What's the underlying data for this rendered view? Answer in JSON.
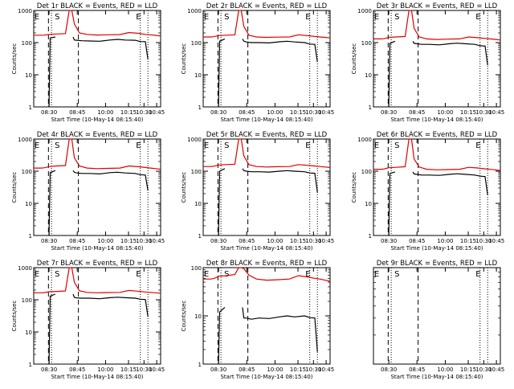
{
  "page": {
    "background": "#ffffff"
  },
  "colors": {
    "events": "#000000",
    "lld": "#e00000",
    "axes": "#000000"
  },
  "chart_data": [
    {
      "type": "line",
      "detector": "1r",
      "title": "Det 1r BLACK = Events, RED = LLD",
      "xlabel": "Start Time (10-May-14 08:15:40)",
      "ylabel": "Counts/sec",
      "x_tick_labels": [
        "08:30",
        "08:45",
        "10:00",
        "10:15",
        "10:30",
        "10:45"
      ],
      "y_tick_labels": [
        "1",
        "10",
        "100",
        "1000"
      ],
      "y_scale": "log",
      "ylim": [
        1,
        1000
      ],
      "xlim": [
        0,
        100
      ],
      "markers": [
        "E",
        "S",
        "E"
      ],
      "series": [
        {
          "color": "#e00000",
          "x": [
            0,
            6,
            8,
            10,
            12,
            18,
            25,
            28,
            30,
            32,
            36,
            42,
            50,
            58,
            68,
            75,
            82,
            88,
            92,
            96,
            100
          ],
          "y": [
            170,
            170,
            171,
            174,
            180,
            185,
            190,
            1500,
            1500,
            380,
            200,
            180,
            172,
            175,
            178,
            205,
            195,
            180,
            175,
            168,
            160
          ]
        },
        {
          "color": "#000000",
          "x": [
            0,
            12,
            13,
            17,
            18,
            30,
            31,
            32,
            34,
            38,
            44,
            52,
            60,
            66,
            72,
            80,
            84,
            88,
            90,
            91,
            100
          ],
          "y": [
            null,
            1,
            140,
            150,
            null,
            null,
            150,
            120,
            118,
            114,
            112,
            110,
            120,
            126,
            120,
            118,
            108,
            107,
            30,
            null,
            null
          ]
        }
      ]
    },
    {
      "type": "line",
      "detector": "2r",
      "title": "Det 2r BLACK = Events, RED = LLD",
      "xlabel": "Start Time (10-May-14 08:15:40)",
      "ylabel": "Counts/sec",
      "x_tick_labels": [
        "08:30",
        "08:45",
        "10:00",
        "10:15",
        "10:30",
        "10:45"
      ],
      "y_tick_labels": [
        "1",
        "10",
        "100",
        "1000"
      ],
      "y_scale": "log",
      "ylim": [
        1,
        1000
      ],
      "xlim": [
        0,
        100
      ],
      "markers": [
        "E",
        "S",
        "E"
      ],
      "series": [
        {
          "color": "#e00000",
          "x": [
            0,
            6,
            8,
            10,
            12,
            18,
            25,
            28,
            30,
            32,
            36,
            42,
            50,
            58,
            68,
            75,
            82,
            88,
            92,
            96,
            100
          ],
          "y": [
            150,
            150,
            152,
            158,
            165,
            170,
            175,
            1500,
            1500,
            320,
            170,
            150,
            145,
            148,
            150,
            175,
            165,
            155,
            150,
            145,
            140
          ]
        },
        {
          "color": "#000000",
          "x": [
            0,
            12,
            13,
            17,
            18,
            30,
            31,
            32,
            34,
            38,
            44,
            52,
            60,
            66,
            72,
            80,
            84,
            88,
            90,
            91,
            100
          ],
          "y": [
            null,
            1,
            110,
            130,
            null,
            null,
            130,
            110,
            105,
            100,
            100,
            98,
            106,
            110,
            105,
            100,
            90,
            88,
            25,
            null,
            null
          ]
        }
      ]
    },
    {
      "type": "line",
      "detector": "3r",
      "title": "Det 3r BLACK = Events, RED = LLD",
      "xlabel": "Start Time (10-May-14 08:15:40)",
      "ylabel": "Counts/sec",
      "x_tick_labels": [
        "08:30",
        "08:45",
        "10:00",
        "10:15",
        "10:30",
        "10:45"
      ],
      "y_tick_labels": [
        "1",
        "10",
        "100",
        "1000"
      ],
      "y_scale": "log",
      "ylim": [
        1,
        1000
      ],
      "xlim": [
        0,
        100
      ],
      "markers": [
        "E",
        "S",
        "E"
      ],
      "series": [
        {
          "color": "#e00000",
          "x": [
            0,
            6,
            8,
            10,
            12,
            18,
            25,
            28,
            30,
            32,
            36,
            42,
            50,
            58,
            68,
            75,
            82,
            88,
            92,
            96,
            100
          ],
          "y": [
            130,
            130,
            132,
            138,
            145,
            150,
            155,
            1500,
            1500,
            280,
            150,
            130,
            125,
            128,
            130,
            150,
            142,
            135,
            130,
            126,
            120
          ]
        },
        {
          "color": "#000000",
          "x": [
            0,
            12,
            13,
            17,
            18,
            30,
            31,
            32,
            34,
            38,
            44,
            52,
            60,
            66,
            72,
            80,
            84,
            88,
            90,
            91,
            100
          ],
          "y": [
            null,
            1,
            95,
            110,
            null,
            null,
            110,
            95,
            92,
            88,
            88,
            85,
            92,
            96,
            92,
            88,
            80,
            78,
            20,
            null,
            null
          ]
        }
      ]
    },
    {
      "type": "line",
      "detector": "4r",
      "title": "Det 4r BLACK = Events, RED = LLD",
      "xlabel": "Start Time (10-May-14 08:15:40)",
      "ylabel": "Counts/sec",
      "x_tick_labels": [
        "08:30",
        "08:45",
        "10:00",
        "10:15",
        "10:30",
        "10:45"
      ],
      "y_tick_labels": [
        "1",
        "10",
        "100",
        "1000"
      ],
      "y_scale": "log",
      "ylim": [
        1,
        1000
      ],
      "xlim": [
        0,
        100
      ],
      "markers": [
        "E",
        "S",
        "E"
      ],
      "series": [
        {
          "color": "#e00000",
          "x": [
            0,
            6,
            8,
            10,
            12,
            18,
            25,
            28,
            30,
            32,
            36,
            42,
            50,
            58,
            68,
            75,
            82,
            88,
            92,
            96,
            100
          ],
          "y": [
            125,
            125,
            127,
            132,
            140,
            145,
            150,
            1500,
            1500,
            260,
            145,
            125,
            120,
            122,
            125,
            145,
            138,
            130,
            125,
            120,
            115
          ]
        },
        {
          "color": "#000000",
          "x": [
            0,
            12,
            13,
            17,
            18,
            30,
            31,
            32,
            34,
            38,
            44,
            52,
            60,
            66,
            72,
            80,
            84,
            88,
            90,
            91,
            100
          ],
          "y": [
            null,
            1,
            90,
            105,
            null,
            null,
            105,
            92,
            88,
            85,
            85,
            82,
            90,
            93,
            88,
            85,
            78,
            76,
            25,
            null,
            null
          ]
        }
      ]
    },
    {
      "type": "line",
      "detector": "5r",
      "title": "Det 5r BLACK = Events, RED = LLD",
      "xlabel": "Start Time (10-May-14 08:15:40)",
      "ylabel": "Counts/sec",
      "x_tick_labels": [
        "08:30",
        "08:45",
        "10:00",
        "10:15",
        "10:30",
        "10:45"
      ],
      "y_tick_labels": [
        "1",
        "10",
        "100",
        "1000"
      ],
      "y_scale": "log",
      "ylim": [
        1,
        1000
      ],
      "xlim": [
        0,
        100
      ],
      "markers": [
        "E",
        "S",
        "E"
      ],
      "series": [
        {
          "color": "#e00000",
          "x": [
            0,
            6,
            8,
            10,
            12,
            18,
            25,
            28,
            30,
            32,
            36,
            42,
            50,
            58,
            68,
            75,
            82,
            88,
            92,
            96,
            100
          ],
          "y": [
            140,
            140,
            142,
            148,
            155,
            160,
            165,
            1500,
            1500,
            300,
            160,
            140,
            135,
            138,
            140,
            160,
            152,
            145,
            140,
            135,
            130
          ]
        },
        {
          "color": "#000000",
          "x": [
            0,
            12,
            13,
            17,
            18,
            30,
            31,
            32,
            34,
            38,
            44,
            52,
            60,
            66,
            72,
            80,
            84,
            88,
            90,
            91,
            100
          ],
          "y": [
            null,
            1,
            100,
            120,
            null,
            null,
            120,
            105,
            100,
            96,
            96,
            94,
            100,
            104,
            100,
            96,
            88,
            86,
            22,
            null,
            null
          ]
        }
      ]
    },
    {
      "type": "line",
      "detector": "6r",
      "title": "Det 6r BLACK = Events, RED = LLD",
      "xlabel": "Start Time (10-May-14 08:15:40)",
      "ylabel": "Counts/sec",
      "x_tick_labels": [
        "08:30",
        "08:45",
        "10:00",
        "10:15",
        "10:30",
        "10:45"
      ],
      "y_tick_labels": [
        "1",
        "10",
        "100",
        "1000"
      ],
      "y_scale": "log",
      "ylim": [
        1,
        1000
      ],
      "xlim": [
        0,
        100
      ],
      "markers": [
        "E",
        "S",
        "E"
      ],
      "series": [
        {
          "color": "#e00000",
          "x": [
            0,
            6,
            8,
            10,
            12,
            18,
            25,
            28,
            30,
            32,
            36,
            42,
            50,
            58,
            68,
            75,
            82,
            88,
            92,
            96,
            100
          ],
          "y": [
            115,
            115,
            117,
            122,
            128,
            132,
            138,
            1500,
            1500,
            240,
            135,
            115,
            110,
            112,
            115,
            132,
            126,
            118,
            114,
            110,
            105
          ]
        },
        {
          "color": "#000000",
          "x": [
            0,
            12,
            13,
            17,
            18,
            30,
            31,
            32,
            34,
            38,
            44,
            52,
            60,
            66,
            72,
            80,
            84,
            88,
            90,
            91,
            100
          ],
          "y": [
            null,
            1,
            85,
            95,
            null,
            null,
            95,
            82,
            80,
            76,
            76,
            74,
            80,
            83,
            80,
            76,
            70,
            68,
            18,
            null,
            null
          ]
        }
      ]
    },
    {
      "type": "line",
      "detector": "7r",
      "title": "Det 7r BLACK = Events, RED = LLD",
      "xlabel": "Start Time (10-May-14 08:15:40)",
      "ylabel": "Counts/sec",
      "x_tick_labels": [
        "08:30",
        "08:45",
        "10:00",
        "10:15",
        "10:30",
        "10:45"
      ],
      "y_tick_labels": [
        "1",
        "10",
        "100",
        "1000"
      ],
      "y_scale": "log",
      "ylim": [
        1,
        1000
      ],
      "xlim": [
        0,
        100
      ],
      "markers": [
        "E",
        "S",
        "E"
      ],
      "series": [
        {
          "color": "#e00000",
          "x": [
            0,
            6,
            8,
            10,
            12,
            18,
            25,
            28,
            30,
            32,
            36,
            42,
            50,
            58,
            68,
            75,
            82,
            88,
            92,
            96,
            100
          ],
          "y": [
            165,
            165,
            167,
            172,
            178,
            182,
            188,
            1500,
            1500,
            350,
            190,
            170,
            165,
            168,
            170,
            195,
            185,
            175,
            170,
            165,
            160
          ]
        },
        {
          "color": "#000000",
          "x": [
            0,
            12,
            13,
            17,
            18,
            30,
            31,
            32,
            34,
            38,
            44,
            52,
            60,
            66,
            72,
            80,
            84,
            88,
            90,
            91,
            100
          ],
          "y": [
            null,
            1,
            130,
            150,
            null,
            null,
            150,
            118,
            115,
            112,
            112,
            108,
            116,
            120,
            116,
            112,
            104,
            102,
            30,
            null,
            null
          ]
        }
      ]
    },
    {
      "type": "line",
      "detector": "8r",
      "title": "Det 8r BLACK = Events, RED = LLD",
      "xlabel": "Start Time (10-May-14 08:15:40)",
      "ylabel": "Counts/sec",
      "x_tick_labels": [
        "08:30",
        "08:45",
        "10:00",
        "10:15",
        "10:30",
        "10:45"
      ],
      "y_tick_labels": [
        "1",
        "10",
        "100"
      ],
      "y_scale": "log",
      "ylim": [
        1,
        100
      ],
      "xlim": [
        0,
        100
      ],
      "markers": [
        "E",
        "S",
        "E"
      ],
      "series": [
        {
          "color": "#e00000",
          "x": [
            0,
            6,
            8,
            10,
            12,
            18,
            25,
            28,
            30,
            32,
            36,
            42,
            50,
            58,
            68,
            75,
            82,
            88,
            92,
            96,
            100
          ],
          "y": [
            58,
            58,
            59,
            62,
            66,
            68,
            72,
            250,
            250,
            95,
            70,
            58,
            55,
            56,
            58,
            68,
            64,
            60,
            58,
            55,
            52
          ]
        },
        {
          "color": "#000000",
          "x": [
            0,
            12,
            13,
            17,
            18,
            30,
            31,
            32,
            34,
            38,
            44,
            52,
            60,
            66,
            72,
            80,
            84,
            88,
            90,
            91,
            100
          ],
          "y": [
            null,
            1,
            12,
            15,
            null,
            null,
            15,
            9,
            9,
            8.5,
            9,
            8.8,
            9.5,
            10,
            9.5,
            10,
            9.2,
            9,
            1.8,
            null,
            null
          ]
        }
      ]
    },
    {
      "type": "line",
      "detector": "9r",
      "title": "Det 9r BLACK = Events, RED = LLD",
      "xlabel": "Start Time (10-May-14 08:15:40)",
      "ylabel": "",
      "x_tick_labels": [
        "08:30",
        "08:45",
        "10:00",
        "10:15",
        "10:30",
        "10:45"
      ],
      "y_tick_labels": [],
      "y_scale": "log",
      "ylim": [
        1,
        10
      ],
      "xlim": [
        0,
        100
      ],
      "markers": [
        "E",
        "S",
        "E"
      ],
      "series": []
    }
  ]
}
